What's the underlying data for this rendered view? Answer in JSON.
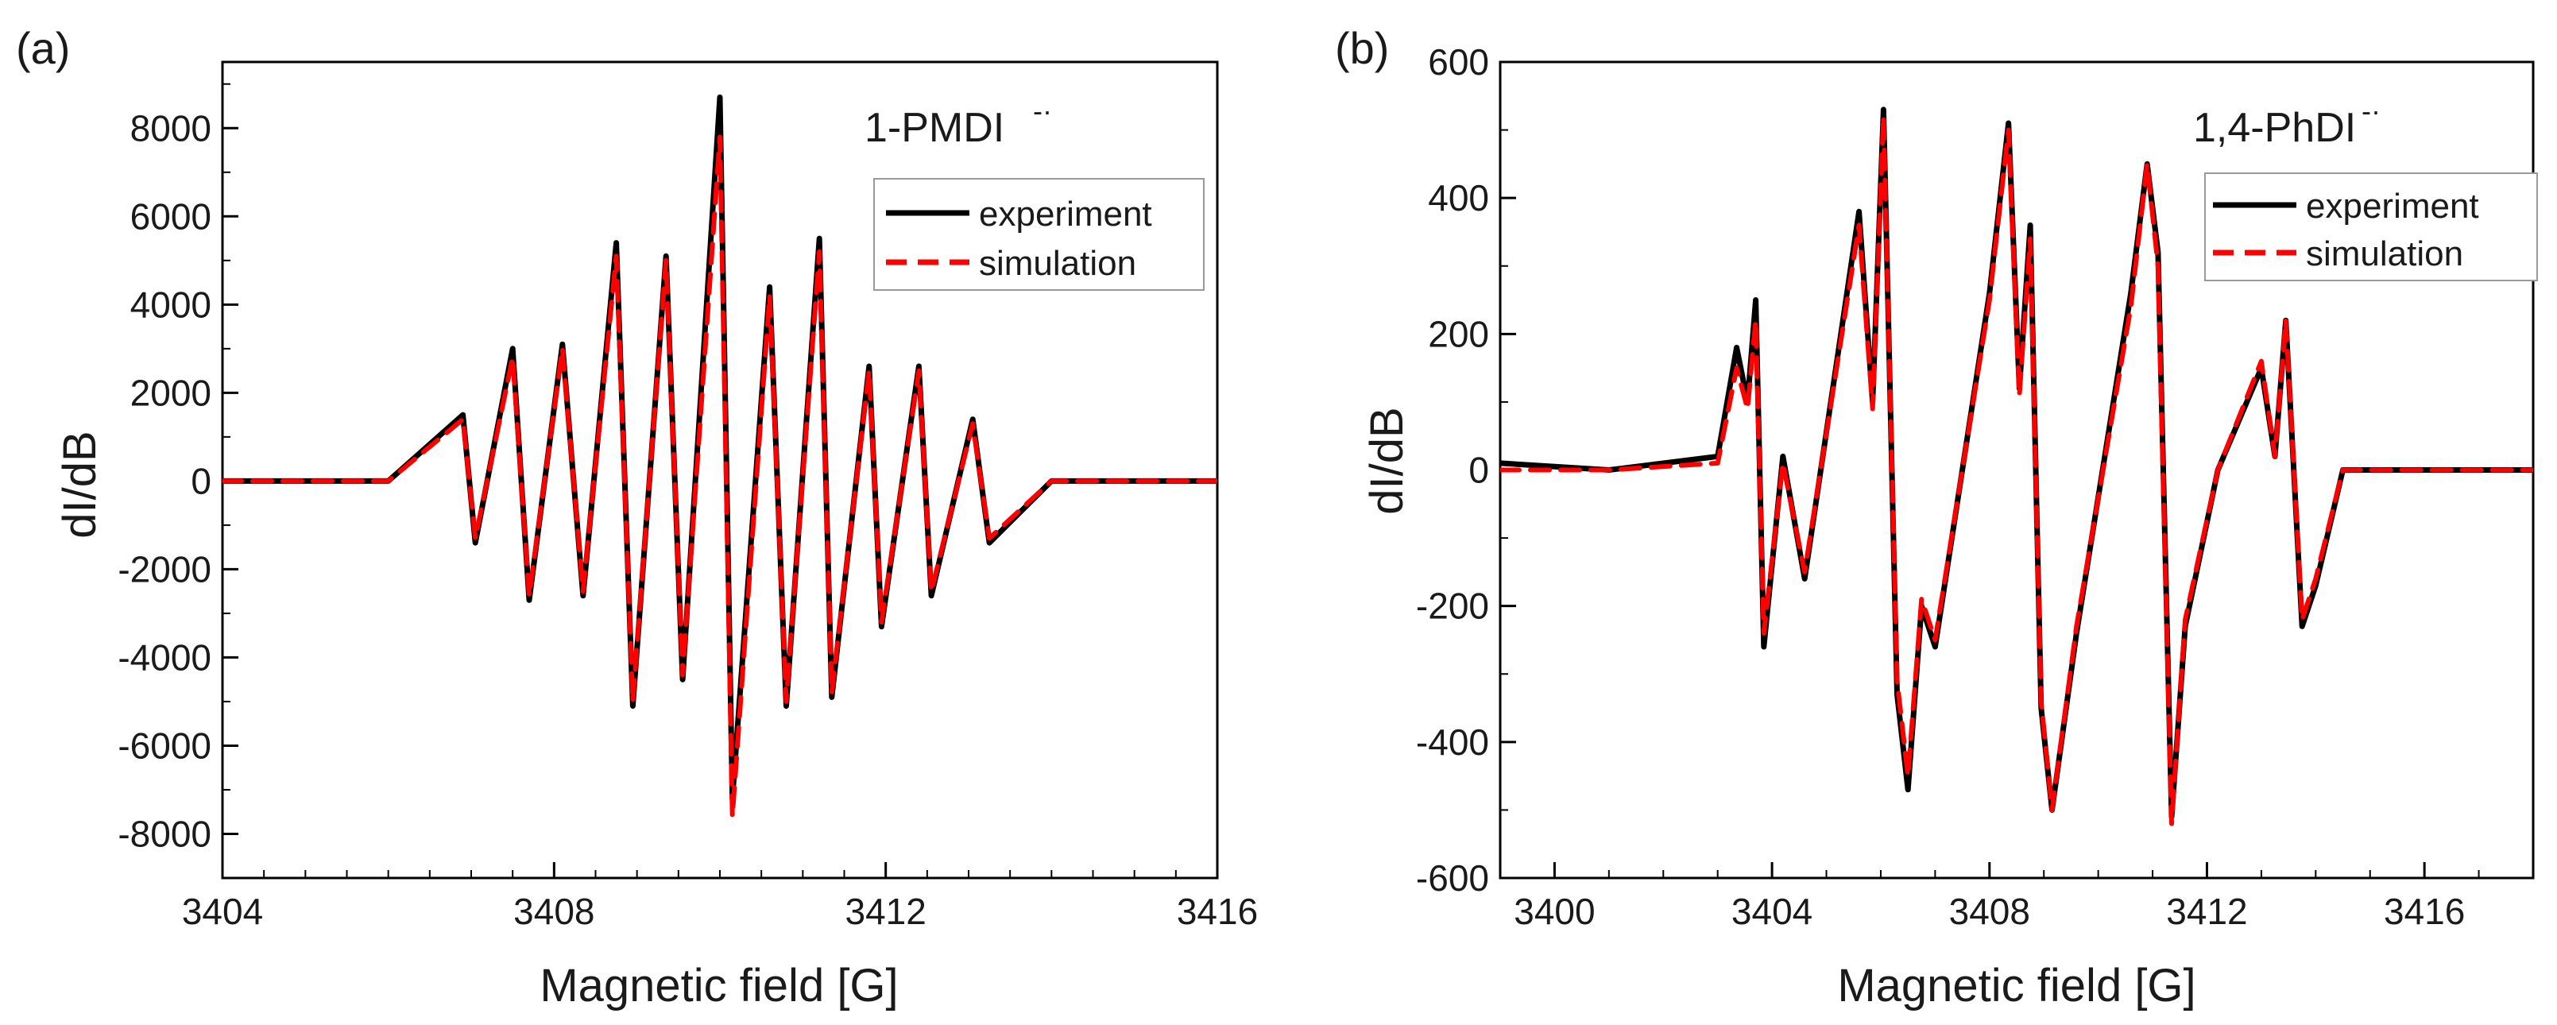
{
  "chart_data": [
    {
      "type": "line",
      "panel_label": "(a)",
      "compound_label": "1-PMDI",
      "compound_superscript": "-·",
      "xlabel": "Magnetic field [G]",
      "ylabel": "dI/dB",
      "xlim": [
        3404,
        3416
      ],
      "ylim": [
        -9000,
        9500
      ],
      "xticks": [
        3404,
        3408,
        3412,
        3416
      ],
      "yticks": [
        -8000,
        -6000,
        -4000,
        -2000,
        0,
        2000,
        4000,
        6000,
        8000
      ],
      "legend": {
        "position": "top-right",
        "entries": [
          "experiment",
          "simulation"
        ]
      },
      "series": [
        {
          "name": "experiment",
          "color": "#000000",
          "dash": "solid",
          "x": [
            3404.0,
            3406.0,
            3406.9,
            3407.05,
            3407.5,
            3407.7,
            3408.1,
            3408.35,
            3408.75,
            3408.95,
            3409.35,
            3409.55,
            3410.0,
            3410.15,
            3410.6,
            3410.8,
            3411.2,
            3411.35,
            3411.8,
            3411.95,
            3412.4,
            3412.55,
            3413.05,
            3413.25,
            3414.0,
            3416.0
          ],
          "y": [
            0,
            0,
            1500,
            -1400,
            3000,
            -2700,
            3100,
            -2600,
            5400,
            -5100,
            5100,
            -4500,
            8700,
            -7200,
            4400,
            -5100,
            5500,
            -4900,
            2600,
            -3300,
            2600,
            -2600,
            1400,
            -1400,
            0,
            0
          ]
        },
        {
          "name": "simulation",
          "color": "#ff0000",
          "dash": "dashed",
          "x": [
            3404.0,
            3406.0,
            3406.9,
            3407.05,
            3407.5,
            3407.7,
            3408.1,
            3408.35,
            3408.75,
            3408.95,
            3409.35,
            3409.55,
            3410.0,
            3410.15,
            3410.6,
            3410.8,
            3411.2,
            3411.35,
            3411.8,
            3411.95,
            3412.4,
            3412.55,
            3413.05,
            3413.25,
            3414.0,
            3416.0
          ],
          "y": [
            0,
            0,
            1400,
            -1300,
            2800,
            -2600,
            3000,
            -2500,
            5100,
            -5000,
            5000,
            -4400,
            7800,
            -7600,
            4200,
            -5000,
            5200,
            -4800,
            2500,
            -3200,
            2500,
            -2500,
            1300,
            -1300,
            0,
            0
          ]
        }
      ]
    },
    {
      "type": "line",
      "panel_label": "(b)",
      "compound_label": "1,4-PhDI",
      "compound_superscript": "-·",
      "xlabel": "Magnetic field [G]",
      "ylabel": "dI/dB",
      "xlim": [
        3399,
        3418
      ],
      "ylim": [
        -600,
        600
      ],
      "xticks": [
        3400,
        3404,
        3408,
        3412,
        3416
      ],
      "yticks": [
        -600,
        -400,
        -200,
        0,
        200,
        400,
        600
      ],
      "legend": {
        "position": "top-right",
        "entries": [
          "experiment",
          "simulation"
        ]
      },
      "series": [
        {
          "name": "experiment",
          "color": "#000000",
          "dash": "solid",
          "x": [
            3399.0,
            3401.0,
            3403.0,
            3403.35,
            3403.55,
            3403.7,
            3403.85,
            3404.2,
            3404.6,
            3405.6,
            3405.85,
            3406.05,
            3406.3,
            3406.5,
            3406.75,
            3407.0,
            3408.0,
            3408.35,
            3408.55,
            3408.75,
            3408.95,
            3409.15,
            3409.6,
            3410.6,
            3410.9,
            3411.1,
            3411.35,
            3411.6,
            3412.2,
            3413.0,
            3413.25,
            3413.45,
            3413.75,
            3414.0,
            3414.5,
            3416.0,
            3418.0
          ],
          "y": [
            10,
            0,
            20,
            180,
            100,
            250,
            -260,
            20,
            -160,
            380,
            100,
            530,
            -330,
            -470,
            -200,
            -260,
            260,
            510,
            120,
            360,
            -350,
            -500,
            -240,
            260,
            450,
            320,
            -510,
            -230,
            0,
            150,
            20,
            220,
            -230,
            -170,
            0,
            0,
            0
          ]
        },
        {
          "name": "simulation",
          "color": "#ff0000",
          "dash": "dashed",
          "x": [
            3399.0,
            3401.0,
            3403.0,
            3403.35,
            3403.55,
            3403.7,
            3403.85,
            3404.2,
            3404.6,
            3405.6,
            3405.85,
            3406.05,
            3406.3,
            3406.5,
            3406.75,
            3407.0,
            3408.0,
            3408.35,
            3408.55,
            3408.75,
            3408.95,
            3409.15,
            3409.6,
            3410.6,
            3410.9,
            3411.1,
            3411.35,
            3411.6,
            3412.2,
            3413.0,
            3413.25,
            3413.45,
            3413.75,
            3414.0,
            3414.5,
            3416.0,
            3418.0
          ],
          "y": [
            0,
            0,
            10,
            150,
            90,
            220,
            -240,
            10,
            -150,
            360,
            90,
            520,
            -310,
            -450,
            -190,
            -250,
            250,
            500,
            110,
            340,
            -340,
            -500,
            -230,
            240,
            450,
            300,
            -520,
            -220,
            0,
            160,
            20,
            220,
            -220,
            -160,
            0,
            0,
            0
          ]
        }
      ]
    }
  ]
}
